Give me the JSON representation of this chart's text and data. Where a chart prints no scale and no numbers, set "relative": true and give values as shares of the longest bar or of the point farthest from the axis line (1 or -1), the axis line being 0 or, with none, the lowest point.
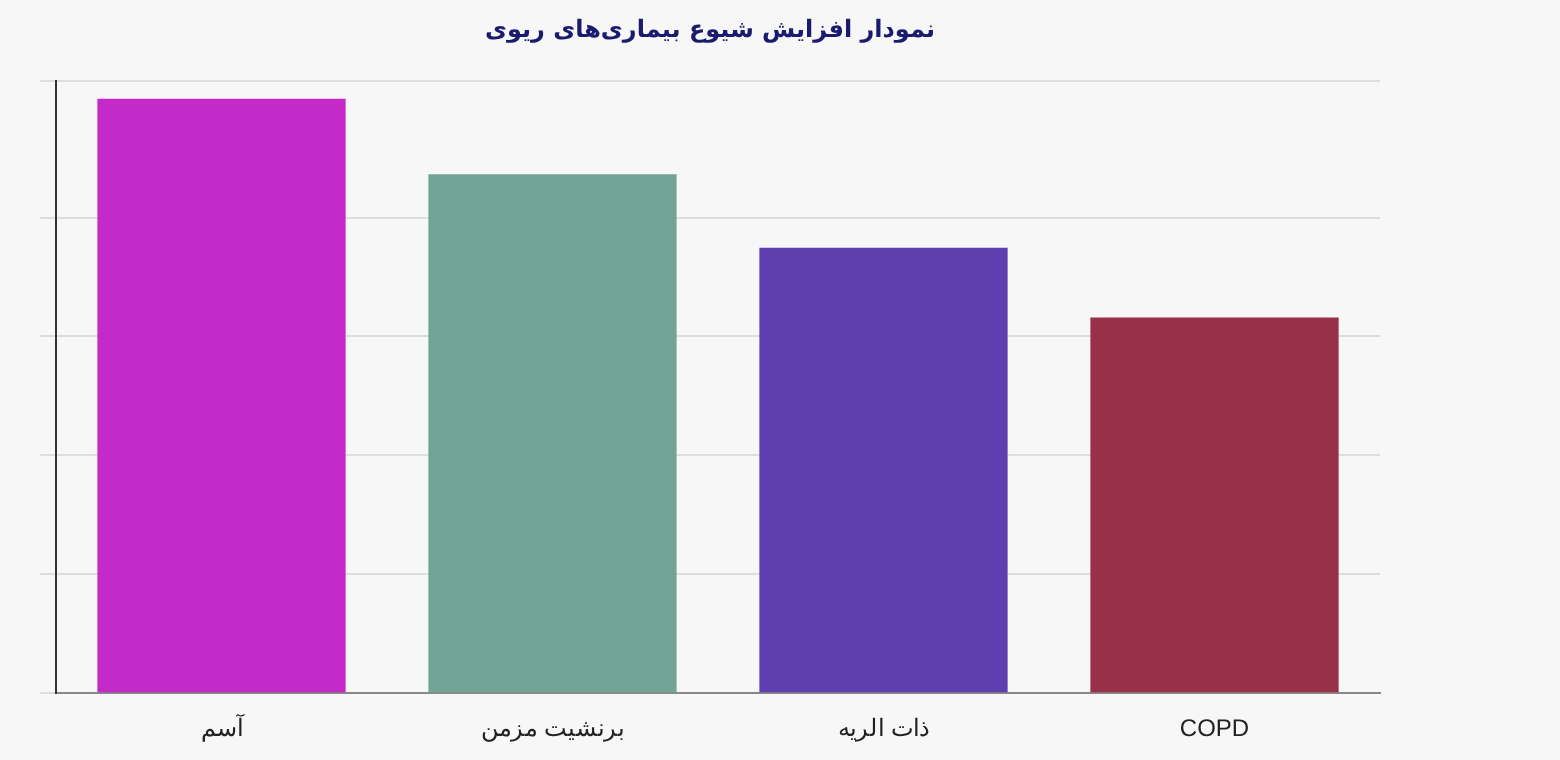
{
  "chart_data": {
    "type": "bar",
    "title": "نمودار افزایش شیوع بیماری‌های ریوی",
    "categories": [
      "آسم",
      "برنشیت مزمن",
      "ذات الریه",
      "COPD"
    ],
    "values": [
      1,
      0.873,
      0.749,
      0.632
    ],
    "colors": [
      "#c42ac8",
      "#70a596",
      "#5e3fb0",
      "#98304a"
    ],
    "relative": true,
    "grid": "y"
  }
}
